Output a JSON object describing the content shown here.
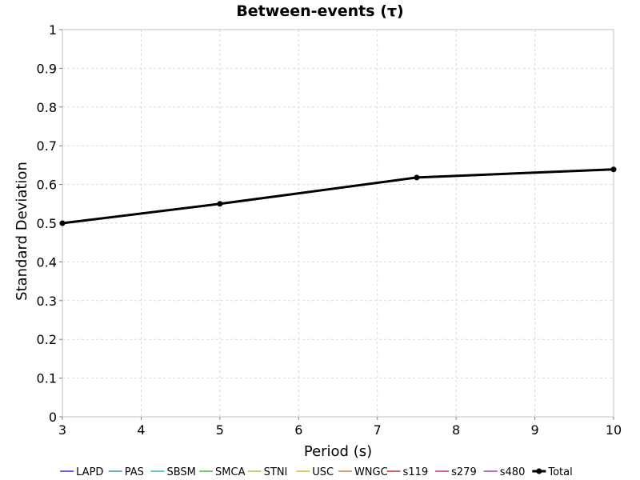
{
  "chart_data": {
    "type": "line",
    "title": "Between-events (τ)",
    "xlabel": "Period (s)",
    "ylabel": "Standard Deviation",
    "xlim": [
      3,
      10
    ],
    "ylim": [
      0,
      1
    ],
    "x_ticks": [
      "3",
      "4",
      "5",
      "6",
      "7",
      "8",
      "9",
      "10"
    ],
    "y_ticks": [
      "0",
      "0.1",
      "0.2",
      "0.3",
      "0.4",
      "0.5",
      "0.6",
      "0.7",
      "0.8",
      "0.9",
      "1"
    ],
    "grid": true,
    "legend_position": "bottom",
    "series": [
      {
        "name": "LAPD",
        "color": "#3333cc",
        "x": [],
        "y": []
      },
      {
        "name": "PAS",
        "color": "#3399aa",
        "x": [],
        "y": []
      },
      {
        "name": "SBSM",
        "color": "#33bbaa",
        "x": [],
        "y": []
      },
      {
        "name": "SMCA",
        "color": "#44bb44",
        "x": [],
        "y": []
      },
      {
        "name": "STNI",
        "color": "#aacc33",
        "x": [],
        "y": []
      },
      {
        "name": "USC",
        "color": "#ccbb33",
        "x": [],
        "y": []
      },
      {
        "name": "WNGC",
        "color": "#cc8833",
        "x": [],
        "y": []
      },
      {
        "name": "s119",
        "color": "#cc3333",
        "x": [],
        "y": []
      },
      {
        "name": "s279",
        "color": "#cc3377",
        "x": [],
        "y": []
      },
      {
        "name": "s480",
        "color": "#bb33cc",
        "x": [],
        "y": []
      },
      {
        "name": "Total",
        "color": "#000000",
        "x": [
          3,
          5,
          7.5,
          10
        ],
        "y": [
          0.5,
          0.55,
          0.618,
          0.639
        ],
        "markers": true
      }
    ]
  }
}
